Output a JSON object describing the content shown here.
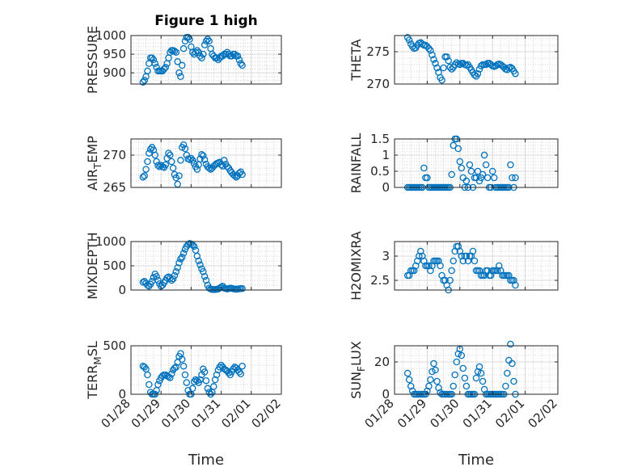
{
  "figure": {
    "title": "Figure 1 high",
    "marker_color": "#0072bd",
    "axis_color": "#262626",
    "grid_color": "#c8c8c8"
  },
  "chart_data": [
    {
      "type": "scatter",
      "panel": "pressure",
      "title": "Figure 1 high",
      "ylabel": "PRESSURE",
      "xlabel": "",
      "ylim": [
        870,
        1000
      ],
      "yticks": [
        900,
        950,
        1000
      ],
      "show_xticks": false,
      "grid": "major+minor",
      "x": [
        0.4,
        0.45,
        0.5,
        0.55,
        0.6,
        0.65,
        0.7,
        0.75,
        0.8,
        0.85,
        0.9,
        0.95,
        1.0,
        1.05,
        1.1,
        1.15,
        1.2,
        1.25,
        1.3,
        1.35,
        1.4,
        1.45,
        1.5,
        1.55,
        1.6,
        1.65,
        1.7,
        1.75,
        1.8,
        1.85,
        1.9,
        1.95,
        2.0,
        2.05,
        2.1,
        2.15,
        2.2,
        2.25,
        2.3,
        2.35,
        2.4,
        2.45,
        2.5,
        2.55,
        2.6,
        2.65,
        2.7,
        2.75,
        2.8,
        2.85,
        2.9,
        2.95,
        3.0,
        3.05,
        3.1,
        3.15,
        3.2,
        3.25,
        3.3,
        3.35,
        3.4,
        3.45,
        3.5,
        3.55,
        3.6,
        3.65,
        3.7
      ],
      "y": [
        875,
        880,
        890,
        905,
        925,
        940,
        940,
        935,
        925,
        915,
        905,
        905,
        905,
        905,
        910,
        915,
        925,
        940,
        955,
        960,
        960,
        958,
        955,
        930,
        900,
        890,
        920,
        965,
        985,
        995,
        995,
        990,
        970,
        955,
        950,
        955,
        960,
        955,
        945,
        940,
        950,
        975,
        985,
        990,
        985,
        965,
        950,
        945,
        940,
        940,
        935,
        940,
        945,
        945,
        950,
        950,
        955,
        950,
        945,
        945,
        950,
        950,
        945,
        945,
        935,
        925,
        920
      ]
    },
    {
      "type": "scatter",
      "panel": "theta",
      "title": "",
      "ylabel": "THETA",
      "xlabel": "",
      "ylim": [
        270,
        277.5
      ],
      "yticks": [
        270,
        275
      ],
      "show_xticks": false,
      "grid": "major+minor",
      "x": [
        0.4,
        0.45,
        0.5,
        0.55,
        0.6,
        0.65,
        0.7,
        0.75,
        0.8,
        0.85,
        0.9,
        0.95,
        1.0,
        1.05,
        1.1,
        1.15,
        1.2,
        1.25,
        1.3,
        1.35,
        1.4,
        1.45,
        1.5,
        1.55,
        1.6,
        1.65,
        1.7,
        1.75,
        1.8,
        1.85,
        1.9,
        1.95,
        2.0,
        2.05,
        2.1,
        2.15,
        2.2,
        2.25,
        2.3,
        2.35,
        2.4,
        2.45,
        2.5,
        2.55,
        2.6,
        2.65,
        2.7,
        2.75,
        2.8,
        2.85,
        2.9,
        2.95,
        3.0,
        3.05,
        3.1,
        3.15,
        3.2,
        3.25,
        3.3,
        3.35,
        3.4,
        3.45,
        3.5,
        3.55,
        3.6,
        3.65,
        3.7
      ],
      "y": [
        277.2,
        276.8,
        276.2,
        275.8,
        275.5,
        275.6,
        276.0,
        276.3,
        276.4,
        276.2,
        276.0,
        276.0,
        275.8,
        275.5,
        275.2,
        274.5,
        273.8,
        273.2,
        272.5,
        271.8,
        271.0,
        270.6,
        272.5,
        274.2,
        274.2,
        273.6,
        272.6,
        272.3,
        272.6,
        273.0,
        273.3,
        273.1,
        273.0,
        273.2,
        273.2,
        273.0,
        272.9,
        273.0,
        272.6,
        272.2,
        271.8,
        271.4,
        271.2,
        271.6,
        272.3,
        272.8,
        273.0,
        273.0,
        273.0,
        273.2,
        273.2,
        273.0,
        272.8,
        272.7,
        272.8,
        273.0,
        273.1,
        273.0,
        272.8,
        272.6,
        272.3,
        272.2,
        272.5,
        272.6,
        272.4,
        272.0,
        271.6
      ]
    },
    {
      "type": "scatter",
      "panel": "air_temp",
      "title": "",
      "ylabel": "AIR_TEMP",
      "xlabel": "",
      "ylim": [
        265,
        272.5
      ],
      "yticks": [
        265,
        270
      ],
      "show_xticks": false,
      "grid": "major+minor",
      "x": [
        0.4,
        0.45,
        0.5,
        0.55,
        0.6,
        0.65,
        0.7,
        0.75,
        0.8,
        0.85,
        0.9,
        0.95,
        1.0,
        1.05,
        1.1,
        1.15,
        1.2,
        1.25,
        1.3,
        1.35,
        1.4,
        1.45,
        1.5,
        1.55,
        1.6,
        1.65,
        1.7,
        1.75,
        1.8,
        1.85,
        1.9,
        1.95,
        2.0,
        2.05,
        2.1,
        2.15,
        2.2,
        2.25,
        2.3,
        2.35,
        2.4,
        2.45,
        2.5,
        2.55,
        2.6,
        2.65,
        2.7,
        2.75,
        2.8,
        2.85,
        2.9,
        2.95,
        3.0,
        3.05,
        3.1,
        3.15,
        3.2,
        3.25,
        3.3,
        3.35,
        3.4,
        3.45,
        3.5,
        3.55,
        3.6,
        3.65,
        3.7
      ],
      "y": [
        266.6,
        266.8,
        267.8,
        269.0,
        270.3,
        270.9,
        271.2,
        270.8,
        270.0,
        269.0,
        268.4,
        268.2,
        268.4,
        268.2,
        268.1,
        268.5,
        269.5,
        270.3,
        270.0,
        269.0,
        268.0,
        267.0,
        266.5,
        265.5,
        266.8,
        269.2,
        271.2,
        271.6,
        271.0,
        270.0,
        269.4,
        269.3,
        269.5,
        269.2,
        268.7,
        268.2,
        267.8,
        268.5,
        269.4,
        270.1,
        269.9,
        269.3,
        268.6,
        268.2,
        268.0,
        267.8,
        268.0,
        268.3,
        268.5,
        268.7,
        268.8,
        268.9,
        268.5,
        268.3,
        269.2,
        268.6,
        268.2,
        268.0,
        267.6,
        267.3,
        267.0,
        266.8,
        266.6,
        266.8,
        267.2,
        267.4,
        267.0
      ]
    },
    {
      "type": "scatter",
      "panel": "rainfall",
      "title": "",
      "ylabel": "RAINFALL",
      "xlabel": "",
      "ylim": [
        0,
        1.5
      ],
      "yticks": [
        0,
        0.5,
        1,
        1.5
      ],
      "show_xticks": false,
      "grid": "major+minor",
      "x": [
        0.4,
        0.45,
        0.5,
        0.55,
        0.6,
        0.65,
        0.7,
        0.75,
        0.8,
        0.85,
        0.9,
        0.95,
        1.0,
        1.05,
        1.1,
        1.15,
        1.2,
        1.25,
        1.3,
        1.35,
        1.4,
        1.45,
        1.5,
        1.55,
        1.6,
        1.65,
        1.7,
        1.75,
        1.8,
        1.85,
        1.9,
        1.95,
        2.0,
        2.05,
        2.1,
        2.15,
        2.2,
        2.25,
        2.3,
        2.35,
        2.4,
        2.45,
        2.5,
        2.55,
        2.6,
        2.65,
        2.7,
        2.75,
        2.8,
        2.85,
        2.9,
        2.95,
        3.0,
        3.05,
        3.1,
        3.15,
        3.2,
        3.25,
        3.3,
        3.35,
        3.4,
        3.45,
        3.5,
        3.55,
        3.6,
        3.65,
        3.7
      ],
      "y": [
        0,
        0,
        0,
        0,
        0,
        0,
        0,
        0,
        0,
        0,
        0.6,
        0.3,
        0.3,
        0,
        0,
        0,
        0,
        0,
        0,
        0,
        0,
        0,
        0,
        0,
        0,
        0,
        0,
        0.4,
        1.3,
        1.5,
        1.5,
        1.2,
        0.8,
        0.6,
        0.3,
        0,
        0.2,
        0,
        0.7,
        0.5,
        0,
        0.3,
        0.3,
        0.5,
        0.2,
        0.3,
        0.4,
        1.0,
        0.7,
        0.3,
        0,
        0,
        0.5,
        0.3,
        0,
        0,
        0,
        0,
        0,
        0,
        0,
        0,
        0,
        0.7,
        0.3,
        0,
        0.3
      ]
    },
    {
      "type": "scatter",
      "panel": "mixdepth",
      "title": "",
      "ylabel": "MIXDEPTH",
      "xlabel": "",
      "ylim": [
        0,
        1000
      ],
      "yticks": [
        0,
        500,
        1000
      ],
      "show_xticks": false,
      "grid": "major+minor",
      "x": [
        0.4,
        0.45,
        0.5,
        0.55,
        0.6,
        0.65,
        0.7,
        0.75,
        0.8,
        0.85,
        0.9,
        0.95,
        1.0,
        1.05,
        1.1,
        1.15,
        1.2,
        1.25,
        1.3,
        1.35,
        1.4,
        1.45,
        1.5,
        1.55,
        1.6,
        1.65,
        1.7,
        1.75,
        1.8,
        1.85,
        1.9,
        1.95,
        2.0,
        2.05,
        2.1,
        2.15,
        2.2,
        2.25,
        2.3,
        2.35,
        2.4,
        2.45,
        2.5,
        2.55,
        2.6,
        2.65,
        2.7,
        2.75,
        2.8,
        2.85,
        2.9,
        2.95,
        3.0,
        3.05,
        3.1,
        3.15,
        3.2,
        3.25,
        3.3,
        3.35,
        3.4,
        3.45,
        3.5,
        3.55,
        3.6,
        3.65,
        3.7
      ],
      "y": [
        160,
        180,
        140,
        100,
        80,
        120,
        180,
        260,
        330,
        280,
        200,
        130,
        80,
        100,
        150,
        200,
        250,
        270,
        240,
        200,
        230,
        300,
        380,
        460,
        560,
        640,
        680,
        760,
        840,
        900,
        940,
        960,
        950,
        930,
        900,
        820,
        700,
        600,
        520,
        440,
        380,
        280,
        200,
        100,
        40,
        20,
        10,
        10,
        10,
        15,
        20,
        40,
        60,
        80,
        40,
        30,
        20,
        30,
        40,
        35,
        25,
        20,
        15,
        20,
        25,
        30,
        30
      ]
    },
    {
      "type": "scatter",
      "panel": "h2omixra",
      "title": "",
      "ylabel": "H2OMIXRA",
      "xlabel": "",
      "ylim": [
        2.3,
        3.3
      ],
      "yticks": [
        2.5,
        3
      ],
      "show_xticks": false,
      "grid": "major+minor",
      "x": [
        0.4,
        0.45,
        0.5,
        0.55,
        0.6,
        0.65,
        0.7,
        0.75,
        0.8,
        0.85,
        0.9,
        0.95,
        1.0,
        1.05,
        1.1,
        1.15,
        1.2,
        1.25,
        1.3,
        1.35,
        1.4,
        1.45,
        1.5,
        1.55,
        1.6,
        1.65,
        1.7,
        1.75,
        1.8,
        1.85,
        1.9,
        1.95,
        2.0,
        2.05,
        2.1,
        2.15,
        2.2,
        2.25,
        2.3,
        2.35,
        2.4,
        2.45,
        2.5,
        2.55,
        2.6,
        2.65,
        2.7,
        2.75,
        2.8,
        2.85,
        2.9,
        2.95,
        3.0,
        3.05,
        3.1,
        3.15,
        3.2,
        3.25,
        3.3,
        3.35,
        3.4,
        3.45,
        3.5,
        3.55,
        3.6,
        3.65,
        3.7
      ],
      "y": [
        2.6,
        2.6,
        2.7,
        2.7,
        2.7,
        2.8,
        2.9,
        3.0,
        3.1,
        3.0,
        2.9,
        2.8,
        2.8,
        2.8,
        2.7,
        2.8,
        2.9,
        2.9,
        2.9,
        2.9,
        2.8,
        2.6,
        2.5,
        2.5,
        2.4,
        2.3,
        2.5,
        2.7,
        2.9,
        3.1,
        3.2,
        3.2,
        3.1,
        3.0,
        2.9,
        3.0,
        3.0,
        2.9,
        3.0,
        3.0,
        3.1,
        2.9,
        2.7,
        2.7,
        2.7,
        2.6,
        2.6,
        2.6,
        2.7,
        2.7,
        2.6,
        2.6,
        2.7,
        2.7,
        2.7,
        2.7,
        2.8,
        2.7,
        2.6,
        2.6,
        2.6,
        2.6,
        2.6,
        2.5,
        2.5,
        2.5,
        2.4
      ]
    },
    {
      "type": "scatter",
      "panel": "terr_msl",
      "title": "",
      "ylabel": "TERR_MSL",
      "xlabel": "Time",
      "ylim": [
        0,
        500
      ],
      "yticks": [
        0,
        500
      ],
      "show_xticks": true,
      "grid": "major+minor",
      "x": [
        0.4,
        0.45,
        0.5,
        0.55,
        0.6,
        0.65,
        0.7,
        0.75,
        0.8,
        0.85,
        0.9,
        0.95,
        1.0,
        1.05,
        1.1,
        1.15,
        1.2,
        1.25,
        1.3,
        1.35,
        1.4,
        1.45,
        1.5,
        1.55,
        1.6,
        1.65,
        1.7,
        1.75,
        1.8,
        1.85,
        1.9,
        1.95,
        2.0,
        2.05,
        2.1,
        2.15,
        2.2,
        2.25,
        2.3,
        2.35,
        2.4,
        2.45,
        2.5,
        2.55,
        2.6,
        2.65,
        2.7,
        2.75,
        2.8,
        2.85,
        2.9,
        2.95,
        3.0,
        3.05,
        3.1,
        3.15,
        3.2,
        3.25,
        3.3,
        3.35,
        3.4,
        3.45,
        3.5,
        3.55,
        3.6,
        3.65,
        3.7
      ],
      "y": [
        290,
        280,
        260,
        200,
        100,
        20,
        0,
        0,
        0,
        40,
        100,
        140,
        170,
        190,
        200,
        200,
        190,
        180,
        170,
        210,
        250,
        270,
        280,
        330,
        390,
        420,
        360,
        290,
        200,
        120,
        40,
        0,
        0,
        60,
        130,
        150,
        140,
        120,
        150,
        200,
        260,
        230,
        140,
        60,
        20,
        0,
        20,
        80,
        150,
        200,
        250,
        280,
        300,
        280,
        260,
        250,
        240,
        220,
        200,
        230,
        260,
        280,
        270,
        250,
        230,
        210,
        290
      ]
    },
    {
      "type": "scatter",
      "panel": "sun_flux",
      "title": "",
      "ylabel": "SUN_FLUX",
      "xlabel": "Time",
      "ylim": [
        0,
        30
      ],
      "yticks": [
        0,
        20
      ],
      "show_xticks": true,
      "grid": "major+minor",
      "x": [
        0.4,
        0.45,
        0.5,
        0.55,
        0.6,
        0.65,
        0.7,
        0.75,
        0.8,
        0.85,
        0.9,
        0.95,
        1.0,
        1.05,
        1.1,
        1.15,
        1.2,
        1.25,
        1.3,
        1.35,
        1.4,
        1.45,
        1.5,
        1.55,
        1.6,
        1.65,
        1.7,
        1.75,
        1.8,
        1.85,
        1.9,
        1.95,
        2.0,
        2.05,
        2.1,
        2.15,
        2.2,
        2.25,
        2.3,
        2.35,
        2.4,
        2.45,
        2.5,
        2.55,
        2.6,
        2.65,
        2.7,
        2.75,
        2.8,
        2.85,
        2.9,
        2.95,
        3.0,
        3.05,
        3.1,
        3.15,
        3.2,
        3.25,
        3.3,
        3.35,
        3.4,
        3.45,
        3.5,
        3.55,
        3.6,
        3.65,
        3.7
      ],
      "y": [
        13,
        9,
        5,
        2,
        0,
        0,
        0,
        0,
        0,
        0,
        0,
        0,
        2,
        5,
        9,
        14,
        19,
        15,
        8,
        4,
        1,
        0,
        0,
        0,
        0,
        0,
        0,
        0,
        5,
        12,
        20,
        25,
        28,
        24,
        16,
        10,
        5,
        0,
        0,
        0,
        0,
        0,
        10,
        14,
        17,
        13,
        8,
        3,
        0,
        0,
        0,
        0,
        0,
        0,
        0,
        0,
        0,
        0,
        0,
        0,
        5,
        13,
        21,
        31,
        19,
        8,
        0
      ]
    }
  ],
  "x_axis": {
    "min": 0,
    "max": 5,
    "tick_values": [
      0,
      1,
      2,
      3,
      4,
      5
    ],
    "tick_labels": [
      "01/28",
      "01/29",
      "01/30",
      "01/31",
      "02/01",
      "02/02"
    ],
    "label": "Time"
  }
}
